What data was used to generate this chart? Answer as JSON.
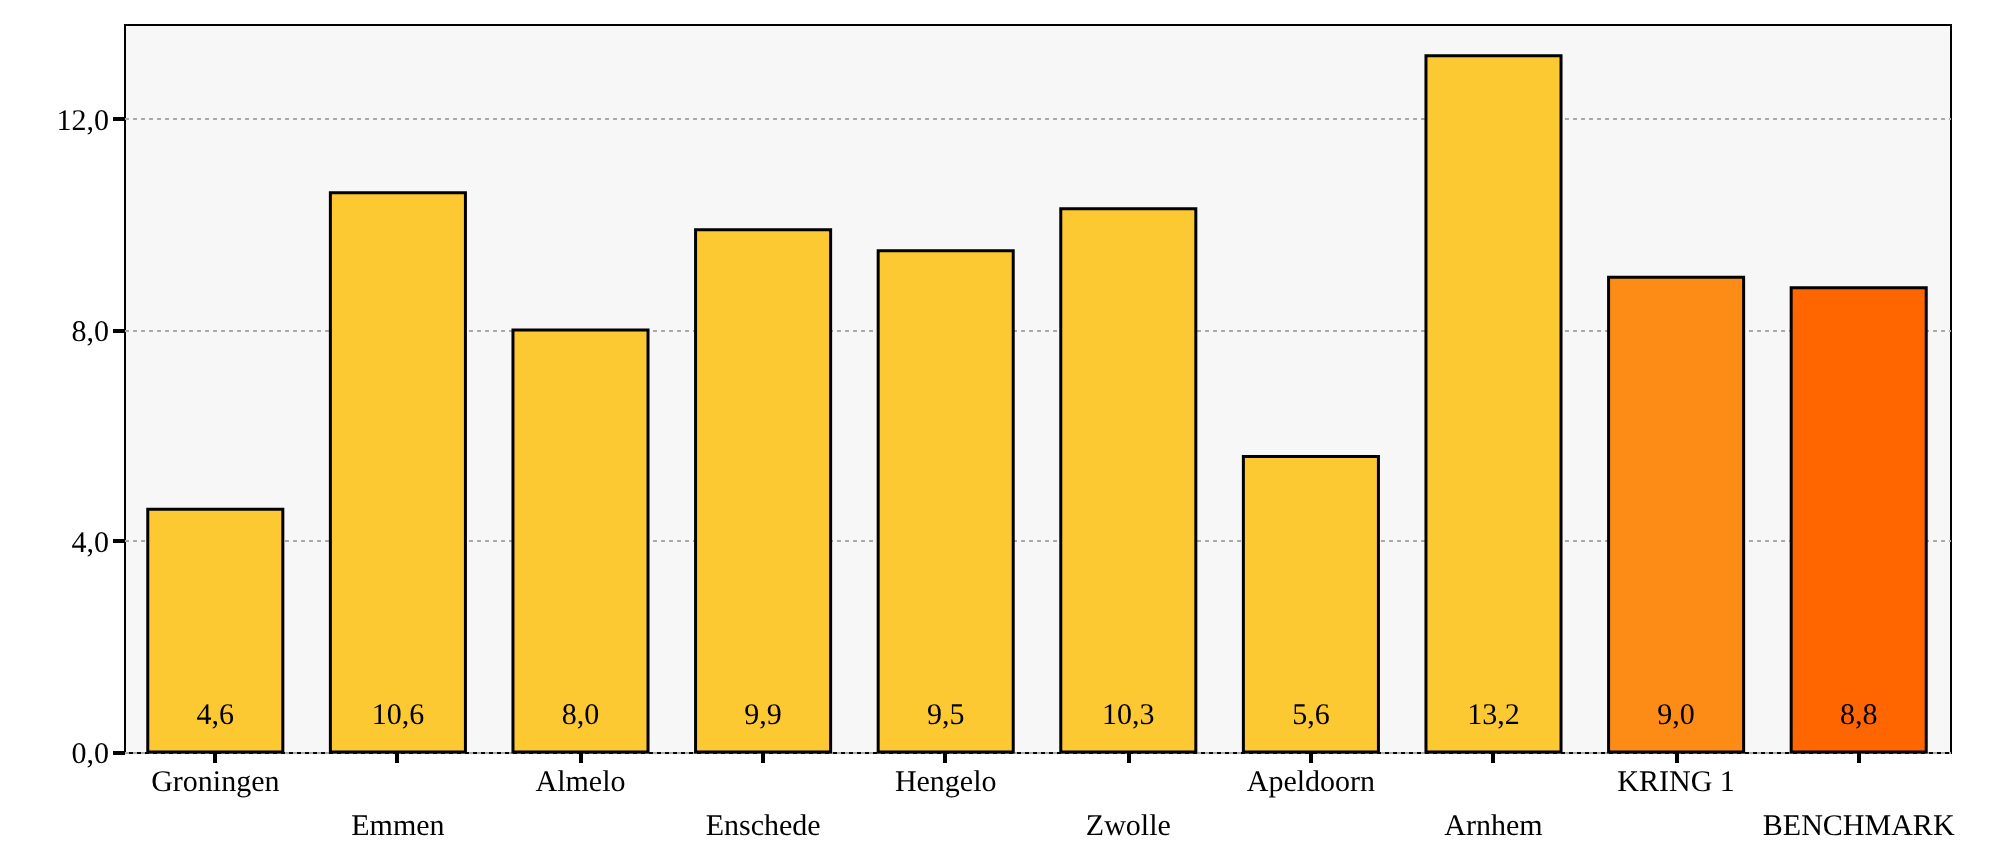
{
  "chart_data": {
    "type": "bar",
    "categories": [
      "Groningen",
      "Emmen",
      "Almelo",
      "Enschede",
      "Hengelo",
      "Zwolle",
      "Apeldoorn",
      "Arnhem",
      "KRING 1",
      "BENCHMARK"
    ],
    "values": [
      4.6,
      10.6,
      8.0,
      9.9,
      9.5,
      10.3,
      5.6,
      13.2,
      9.0,
      8.8
    ],
    "colors": [
      "#fdc933",
      "#fdc933",
      "#fdc933",
      "#fdc933",
      "#fdc933",
      "#fdc933",
      "#fdc933",
      "#fdc933",
      "#fd8c16",
      "#ff6600"
    ],
    "value_labels": [
      "4,6",
      "10,6",
      "8,0",
      "9,9",
      "9,5",
      "10,3",
      "5,6",
      "13,2",
      "9,0",
      "8,8"
    ],
    "ylim": [
      0,
      13.8
    ],
    "yticks": [
      {
        "value": 0,
        "label": "0,0"
      },
      {
        "value": 4,
        "label": "4,0"
      },
      {
        "value": 8,
        "label": "8,0"
      },
      {
        "value": 12,
        "label": "12,0"
      }
    ],
    "grid": "y"
  }
}
